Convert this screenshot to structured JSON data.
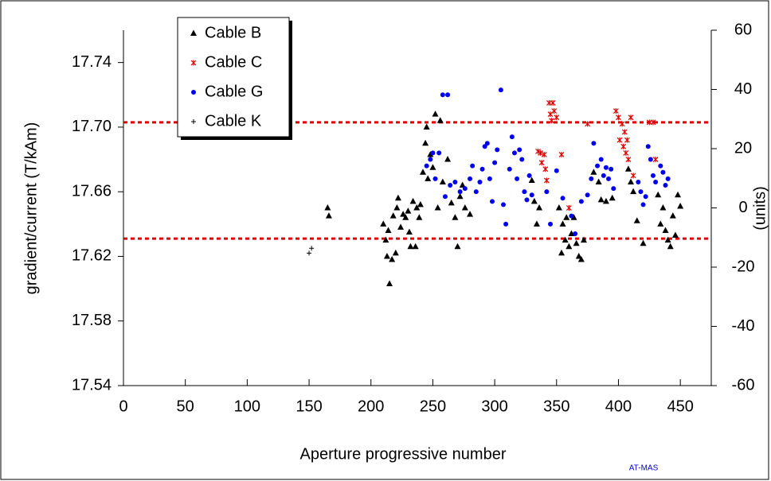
{
  "chart_data": {
    "type": "scatter",
    "x_label": "Aperture progressive number",
    "y_label": "gradient/current  (T/kAm)",
    "y2_label": "(units)",
    "note": "AT-MAS",
    "xlim": [
      0,
      475
    ],
    "xticks": [
      0,
      50,
      100,
      150,
      200,
      250,
      300,
      350,
      400,
      450
    ],
    "ylim": [
      17.54,
      17.76
    ],
    "yticks": [
      17.54,
      17.58,
      17.62,
      17.66,
      {
        "value": 17.7,
        "label": "17.70"
      },
      17.74
    ],
    "y2lim": [
      -60,
      60
    ],
    "y2ticks": [
      -60,
      -40,
      -20,
      0,
      20,
      40,
      60
    ],
    "reference_lines": [
      17.703,
      17.631
    ],
    "reference_color": "#e00000",
    "series": [
      {
        "name": "Cable B",
        "color": "#000000",
        "marker": "triangle",
        "x": [
          165,
          166,
          210,
          212,
          213,
          214,
          215,
          217,
          218,
          220,
          221,
          222,
          224,
          226,
          228,
          230,
          231,
          232,
          234,
          236,
          237,
          239,
          240,
          242,
          244,
          245,
          246,
          248,
          250,
          252,
          254,
          256,
          258,
          262,
          265,
          268,
          270,
          272,
          274,
          276,
          280,
          330,
          332,
          334,
          336,
          352,
          354,
          355,
          357,
          358,
          360,
          362,
          364,
          366,
          368,
          370,
          372,
          380,
          384,
          386,
          390,
          395,
          408,
          410,
          412,
          415,
          420,
          432,
          434,
          436,
          438,
          440,
          442,
          444,
          446,
          448,
          450
        ],
        "values": [
          17.65,
          17.645,
          17.64,
          17.63,
          17.62,
          17.636,
          17.603,
          17.618,
          17.645,
          17.622,
          17.65,
          17.656,
          17.638,
          17.646,
          17.644,
          17.648,
          17.635,
          17.626,
          17.654,
          17.626,
          17.65,
          17.644,
          17.652,
          17.672,
          17.69,
          17.7,
          17.668,
          17.683,
          17.675,
          17.708,
          17.65,
          17.704,
          17.666,
          17.68,
          17.653,
          17.644,
          17.626,
          17.657,
          17.664,
          17.65,
          17.646,
          17.667,
          17.654,
          17.64,
          17.65,
          17.65,
          17.622,
          17.64,
          17.63,
          17.644,
          17.626,
          17.634,
          17.644,
          17.628,
          17.62,
          17.618,
          17.63,
          17.672,
          17.666,
          17.655,
          17.654,
          17.656,
          17.674,
          17.666,
          17.66,
          17.642,
          17.628,
          17.658,
          17.64,
          17.65,
          17.636,
          17.63,
          17.626,
          17.645,
          17.633,
          17.658,
          17.651
        ]
      },
      {
        "name": "Cable C",
        "color": "#e00000",
        "marker": "x",
        "x": [
          335,
          337,
          338,
          340,
          341,
          342,
          344,
          345,
          346,
          347,
          348,
          350,
          354,
          360,
          375,
          398,
          400,
          401,
          403,
          404,
          405,
          406,
          407,
          408,
          410,
          412,
          425,
          428,
          430
        ],
        "values": [
          17.685,
          17.684,
          17.678,
          17.683,
          17.674,
          17.667,
          17.715,
          17.708,
          17.704,
          17.715,
          17.71,
          17.706,
          17.683,
          17.65,
          17.702,
          17.71,
          17.706,
          17.692,
          17.702,
          17.688,
          17.697,
          17.684,
          17.692,
          17.68,
          17.706,
          17.67,
          17.703,
          17.703,
          17.68
        ]
      },
      {
        "name": "Cable G",
        "color": "#0000ee",
        "marker": "circle",
        "x": [
          245,
          248,
          250,
          252,
          255,
          258,
          260,
          262,
          264,
          268,
          272,
          276,
          280,
          282,
          285,
          288,
          290,
          292,
          294,
          296,
          298,
          300,
          302,
          305,
          307,
          309,
          312,
          314,
          316,
          318,
          320,
          322,
          324,
          326,
          328,
          330,
          342,
          345,
          350,
          355,
          362,
          365,
          370,
          375,
          378,
          380,
          383,
          386,
          388,
          390,
          392,
          394,
          396,
          416,
          418,
          420,
          422,
          424,
          426,
          428,
          430,
          434,
          436,
          438,
          440
        ],
        "values": [
          17.676,
          17.68,
          17.684,
          17.668,
          17.684,
          17.72,
          17.657,
          17.72,
          17.664,
          17.666,
          17.66,
          17.662,
          17.668,
          17.676,
          17.66,
          17.666,
          17.674,
          17.688,
          17.69,
          17.668,
          17.654,
          17.678,
          17.686,
          17.723,
          17.652,
          17.64,
          17.674,
          17.694,
          17.684,
          17.668,
          17.686,
          17.68,
          17.66,
          17.655,
          17.67,
          17.658,
          17.66,
          17.64,
          17.673,
          17.656,
          17.645,
          17.634,
          17.654,
          17.658,
          17.668,
          17.69,
          17.676,
          17.68,
          17.67,
          17.675,
          17.668,
          17.674,
          17.662,
          17.666,
          17.66,
          17.652,
          17.657,
          17.688,
          17.68,
          17.67,
          17.666,
          17.676,
          17.672,
          17.664,
          17.668
        ]
      },
      {
        "name": "Cable K",
        "color": "#000000",
        "marker": "plus",
        "x": [
          150,
          152
        ],
        "values": [
          17.622,
          17.625
        ]
      }
    ]
  }
}
